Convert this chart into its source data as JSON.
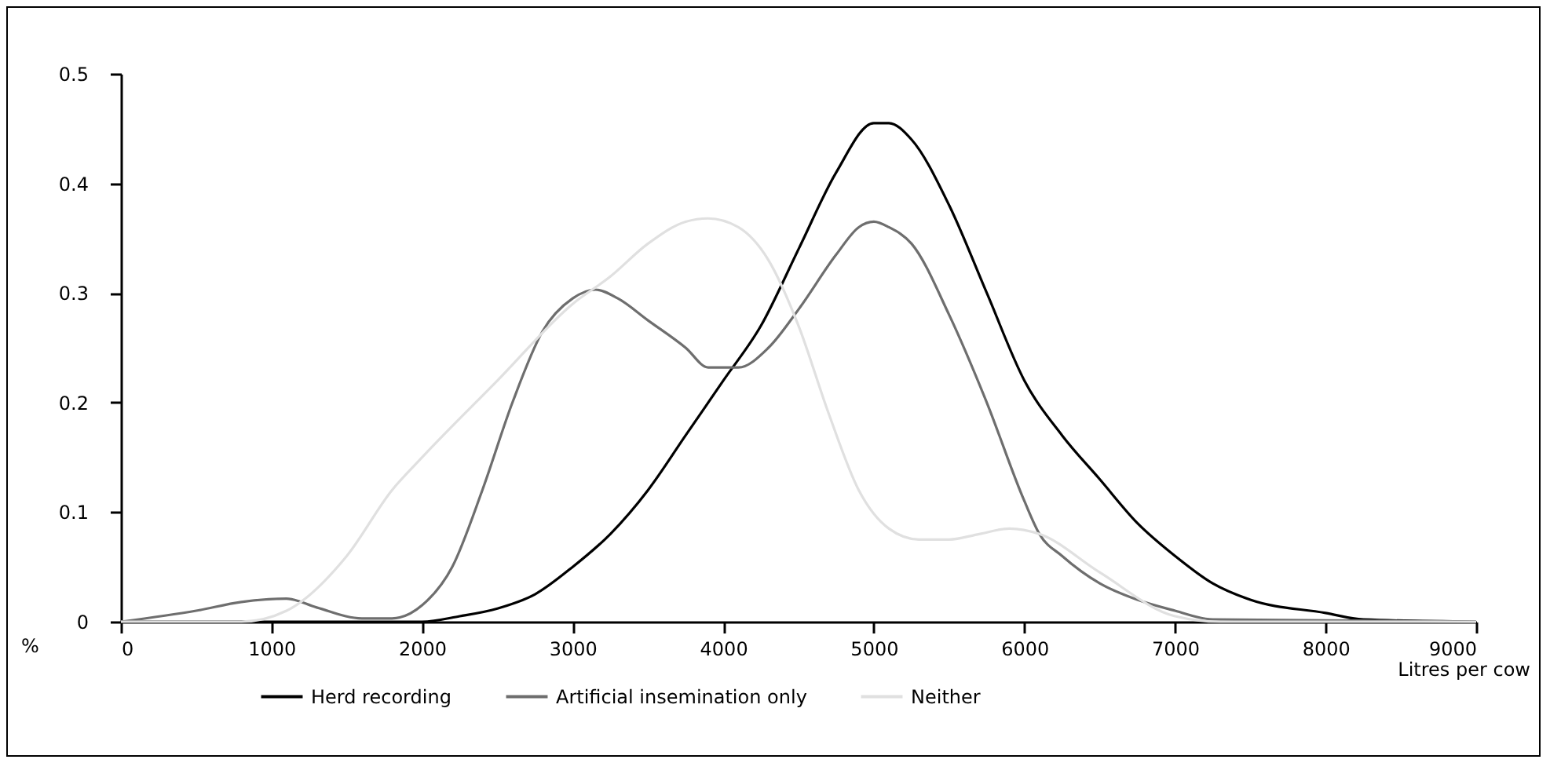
{
  "chart_data": {
    "type": "line",
    "xlabel": "Litres per cow",
    "ylabel": "%",
    "x": [
      0,
      500,
      800,
      1100,
      1300,
      1500,
      1800,
      2000,
      2250,
      2500,
      2750,
      3000,
      3250,
      3500,
      3750,
      4000,
      4250,
      4500,
      4750,
      5000,
      5100,
      5250,
      5500,
      5750,
      6000,
      6250,
      6500,
      6750,
      7000,
      7250,
      7500,
      8000,
      8250,
      9000
    ],
    "series": [
      {
        "name": "Herd recording",
        "color": "#000000",
        "values": [
          0,
          0,
          0,
          0,
          0,
          0,
          0,
          0,
          0.005,
          0.012,
          0.025,
          0.05,
          0.08,
          0.12,
          0.17,
          0.22,
          0.27,
          0.34,
          0.41,
          0.455,
          0.455,
          0.44,
          0.38,
          0.3,
          0.22,
          0.17,
          0.13,
          0.09,
          0.06,
          0.035,
          0.02,
          0.008,
          0.002,
          0
        ]
      },
      {
        "name": "Artificial insemination only",
        "color": "#6e6e6e",
        "x": [
          0,
          500,
          800,
          1100,
          1300,
          1600,
          1800,
          2000,
          2200,
          2400,
          2600,
          2800,
          3000,
          3150,
          3300,
          3500,
          3750,
          3900,
          4100,
          4300,
          4500,
          4750,
          4900,
          5000,
          5100,
          5250,
          5500,
          5750,
          6000,
          6100,
          6250,
          6500,
          6750,
          7000,
          7250,
          9000
        ],
        "values": [
          0,
          0.01,
          0.018,
          0.021,
          0.013,
          0.003,
          0.003,
          0.015,
          0.05,
          0.12,
          0.2,
          0.265,
          0.295,
          0.303,
          0.295,
          0.275,
          0.25,
          0.232,
          0.232,
          0.25,
          0.285,
          0.335,
          0.36,
          0.365,
          0.36,
          0.345,
          0.28,
          0.2,
          0.11,
          0.08,
          0.06,
          0.035,
          0.02,
          0.01,
          0.002,
          0
        ]
      },
      {
        "name": "Neither",
        "color": "#e0e0e0",
        "x": [
          0,
          500,
          800,
          1100,
          1500,
          1800,
          2000,
          2500,
          3000,
          3250,
          3500,
          3750,
          3900,
          4100,
          4300,
          4500,
          4700,
          4900,
          5100,
          5300,
          5500,
          5700,
          5900,
          6100,
          6500,
          7000,
          7300,
          8000,
          9000
        ],
        "values": [
          0,
          0,
          0,
          0.01,
          0.06,
          0.12,
          0.15,
          0.22,
          0.29,
          0.315,
          0.345,
          0.365,
          0.368,
          0.36,
          0.33,
          0.27,
          0.19,
          0.12,
          0.085,
          0.075,
          0.075,
          0.08,
          0.085,
          0.08,
          0.045,
          0.005,
          0,
          0,
          0
        ]
      }
    ],
    "xlim": [
      0,
      9000
    ],
    "xticks": [
      0,
      1000,
      2000,
      3000,
      4000,
      5000,
      6000,
      7000,
      8000,
      9000
    ],
    "ylim": [
      0,
      0.5
    ],
    "yticks": [
      0,
      0.1,
      0.2,
      0.3,
      0.4,
      0.5
    ],
    "legend": "bottom",
    "marker": "none",
    "line_style": "solid"
  }
}
